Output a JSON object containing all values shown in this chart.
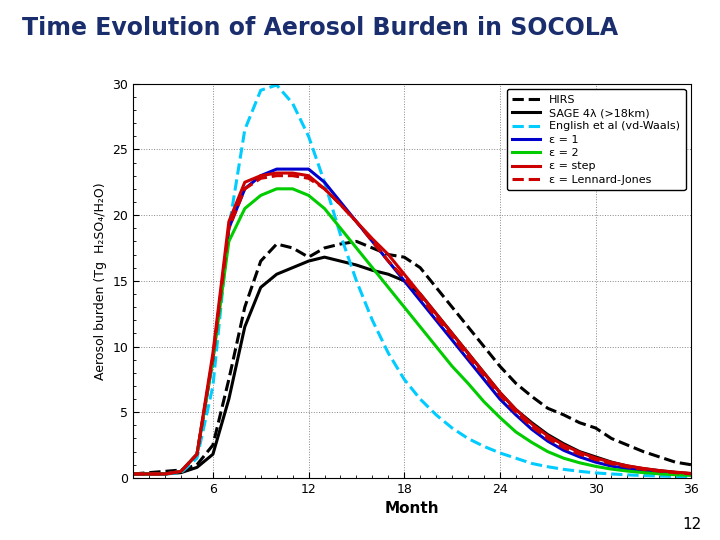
{
  "title": "Time Evolution of Aerosol Burden in SOCOLA",
  "xlabel": "Month",
  "ylabel": "Aerosol burden (Tg  H₂SO₄/H₂O)",
  "xlim": [
    1,
    36
  ],
  "ylim": [
    0,
    30
  ],
  "xticks": [
    6,
    12,
    18,
    24,
    30,
    36
  ],
  "yticks": [
    0,
    5,
    10,
    15,
    20,
    25,
    30
  ],
  "background_color": "#ffffff",
  "title_color": "#1a2e6e",
  "page_number": "12",
  "series": {
    "HIRS": {
      "color": "#000000",
      "linestyle": "--",
      "linewidth": 2.2,
      "label": "HIRS",
      "x": [
        1,
        2,
        3,
        4,
        5,
        6,
        7,
        8,
        9,
        10,
        11,
        12,
        13,
        14,
        15,
        16,
        17,
        18,
        19,
        20,
        21,
        22,
        23,
        24,
        25,
        26,
        27,
        28,
        29,
        30,
        31,
        32,
        33,
        34,
        35,
        36
      ],
      "y": [
        0.3,
        0.4,
        0.5,
        0.6,
        1.0,
        2.5,
        7.5,
        13.0,
        16.5,
        17.8,
        17.5,
        16.8,
        17.5,
        17.8,
        18.0,
        17.5,
        17.0,
        16.8,
        16.0,
        14.5,
        13.0,
        11.5,
        10.0,
        8.5,
        7.2,
        6.2,
        5.3,
        4.8,
        4.2,
        3.8,
        3.0,
        2.5,
        2.0,
        1.6,
        1.2,
        1.0
      ]
    },
    "SAGE": {
      "color": "#000000",
      "linestyle": "-",
      "linewidth": 2.2,
      "label": "SAGE 4λ (>18km)",
      "x": [
        1,
        2,
        3,
        4,
        5,
        6,
        7,
        8,
        9,
        10,
        11,
        12,
        13,
        14,
        15,
        16,
        17,
        18,
        19,
        20,
        21,
        22,
        23,
        24,
        25,
        26,
        27,
        28,
        29,
        30,
        31,
        32,
        33,
        34,
        35,
        36
      ],
      "y": [
        0.3,
        0.3,
        0.3,
        0.4,
        0.8,
        1.8,
        6.0,
        11.5,
        14.5,
        15.5,
        16.0,
        16.5,
        16.8,
        16.5,
        16.2,
        15.8,
        15.5,
        15.0,
        14.0,
        12.5,
        11.0,
        9.5,
        8.0,
        6.5,
        5.2,
        4.2,
        3.3,
        2.6,
        2.0,
        1.6,
        1.2,
        0.9,
        0.7,
        0.55,
        0.42,
        0.32
      ]
    },
    "English": {
      "color": "#00ccff",
      "linestyle": "--",
      "linewidth": 2.2,
      "label": "English et al (vd-Waals)",
      "x": [
        1,
        2,
        3,
        4,
        5,
        6,
        7,
        8,
        9,
        10,
        11,
        12,
        13,
        14,
        15,
        16,
        17,
        18,
        19,
        20,
        21,
        22,
        23,
        24,
        25,
        26,
        27,
        28,
        29,
        30,
        31,
        32,
        33,
        34,
        35,
        36
      ],
      "y": [
        0.3,
        0.3,
        0.3,
        0.4,
        1.5,
        7.0,
        19.0,
        26.5,
        29.5,
        29.9,
        28.5,
        26.0,
        22.5,
        18.5,
        15.0,
        12.0,
        9.5,
        7.5,
        6.0,
        4.8,
        3.8,
        3.0,
        2.4,
        1.9,
        1.5,
        1.1,
        0.85,
        0.65,
        0.5,
        0.38,
        0.3,
        0.23,
        0.18,
        0.14,
        0.11,
        0.09
      ]
    },
    "eps1": {
      "color": "#0000cc",
      "linestyle": "-",
      "linewidth": 2.2,
      "label": "ε = 1",
      "x": [
        1,
        2,
        3,
        4,
        5,
        6,
        7,
        8,
        9,
        10,
        11,
        12,
        13,
        14,
        15,
        16,
        17,
        18,
        19,
        20,
        21,
        22,
        23,
        24,
        25,
        26,
        27,
        28,
        29,
        30,
        31,
        32,
        33,
        34,
        35,
        36
      ],
      "y": [
        0.3,
        0.3,
        0.3,
        0.5,
        1.8,
        9.0,
        19.0,
        22.0,
        23.0,
        23.5,
        23.5,
        23.5,
        22.5,
        21.0,
        19.5,
        18.0,
        16.5,
        15.0,
        13.5,
        12.0,
        10.5,
        9.0,
        7.5,
        6.0,
        4.8,
        3.7,
        2.8,
        2.1,
        1.6,
        1.2,
        0.9,
        0.7,
        0.55,
        0.42,
        0.33,
        0.25
      ]
    },
    "eps2": {
      "color": "#00cc00",
      "linestyle": "-",
      "linewidth": 2.2,
      "label": "ε = 2",
      "x": [
        1,
        2,
        3,
        4,
        5,
        6,
        7,
        8,
        9,
        10,
        11,
        12,
        13,
        14,
        15,
        16,
        17,
        18,
        19,
        20,
        21,
        22,
        23,
        24,
        25,
        26,
        27,
        28,
        29,
        30,
        31,
        32,
        33,
        34,
        35,
        36
      ],
      "y": [
        0.3,
        0.3,
        0.3,
        0.5,
        1.8,
        9.0,
        18.0,
        20.5,
        21.5,
        22.0,
        22.0,
        21.5,
        20.5,
        19.0,
        17.5,
        16.0,
        14.5,
        13.0,
        11.5,
        10.0,
        8.5,
        7.2,
        5.8,
        4.6,
        3.5,
        2.7,
        2.0,
        1.5,
        1.15,
        0.88,
        0.67,
        0.52,
        0.4,
        0.31,
        0.24,
        0.19
      ]
    },
    "eps_step": {
      "color": "#cc0000",
      "linestyle": "-",
      "linewidth": 2.2,
      "label": "ε = step",
      "x": [
        1,
        2,
        3,
        4,
        5,
        6,
        7,
        8,
        9,
        10,
        11,
        12,
        13,
        14,
        15,
        16,
        17,
        18,
        19,
        20,
        21,
        22,
        23,
        24,
        25,
        26,
        27,
        28,
        29,
        30,
        31,
        32,
        33,
        34,
        35,
        36
      ],
      "y": [
        0.3,
        0.3,
        0.3,
        0.5,
        1.8,
        9.5,
        19.5,
        22.5,
        23.0,
        23.2,
        23.2,
        23.0,
        22.0,
        20.8,
        19.5,
        18.2,
        17.0,
        15.5,
        14.0,
        12.5,
        11.0,
        9.5,
        8.0,
        6.5,
        5.2,
        4.1,
        3.2,
        2.5,
        1.95,
        1.52,
        1.18,
        0.92,
        0.72,
        0.56,
        0.44,
        0.34
      ]
    },
    "eps_LJ": {
      "color": "#cc0000",
      "linestyle": "--",
      "linewidth": 2.2,
      "label": "ε = Lennard-Jones",
      "x": [
        1,
        2,
        3,
        4,
        5,
        6,
        7,
        8,
        9,
        10,
        11,
        12,
        13,
        14,
        15,
        16,
        17,
        18,
        19,
        20,
        21,
        22,
        23,
        24,
        25,
        26,
        27,
        28,
        29,
        30,
        31,
        32,
        33,
        34,
        35,
        36
      ],
      "y": [
        0.3,
        0.3,
        0.3,
        0.5,
        1.8,
        9.2,
        19.0,
        22.0,
        22.8,
        23.0,
        23.0,
        22.8,
        22.0,
        20.8,
        19.5,
        18.0,
        16.5,
        15.2,
        13.8,
        12.2,
        10.8,
        9.2,
        7.8,
        6.3,
        5.0,
        3.9,
        3.0,
        2.3,
        1.8,
        1.4,
        1.08,
        0.84,
        0.65,
        0.51,
        0.4,
        0.31
      ]
    }
  }
}
